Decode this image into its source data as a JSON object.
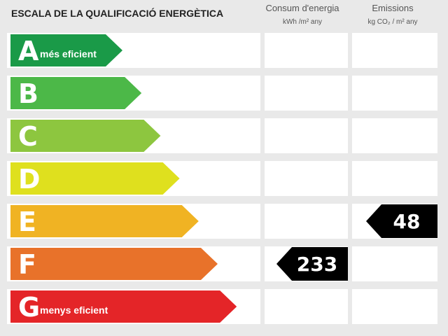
{
  "header": {
    "title": "ESCALA DE LA QUALIFICACIÓ ENERGÈTICA",
    "columns": [
      {
        "title": "Consum d'energia",
        "unit": "kWh /m² any"
      },
      {
        "title": "Emissions",
        "unit": "kg CO₂ / m² any"
      }
    ]
  },
  "rows": [
    {
      "letter": "A",
      "label": "més eficient",
      "color": "#1a9a48"
    },
    {
      "letter": "B",
      "color": "#4cb848"
    },
    {
      "letter": "C",
      "color": "#8dc63f"
    },
    {
      "letter": "D",
      "color": "#dfe01e"
    },
    {
      "letter": "E",
      "color": "#f0b323",
      "emissions": 48
    },
    {
      "letter": "F",
      "color": "#e8722a",
      "consumption": 233
    },
    {
      "letter": "G",
      "label": "menys eficient",
      "color": "#e42528"
    }
  ]
}
